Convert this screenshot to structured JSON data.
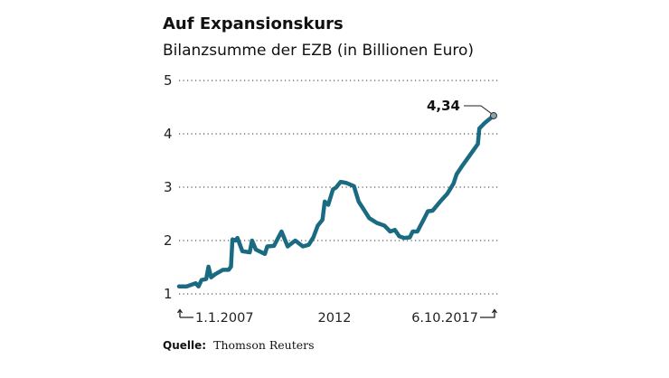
{
  "chart_data": {
    "type": "line",
    "title": "Auf Expansionskurs",
    "subtitle": "Bilanzsumme der EZB (in Billionen Euro)",
    "xlabel": "",
    "ylabel": "",
    "ylim": [
      1,
      5
    ],
    "yticks": [
      "1",
      "2",
      "3",
      "4",
      "5"
    ],
    "xlim": [
      2007.0,
      2017.77
    ],
    "xtick_labels": [
      {
        "label": "1.1.2007",
        "x": 2007.0
      },
      {
        "label": "2012",
        "x": 2012.0
      },
      {
        "label": "6.10.2017",
        "x": 2017.77
      }
    ],
    "grid": "horizontal-dotted",
    "line_color": "#1a6b82",
    "annotation": {
      "label": "4,34",
      "x": 2017.77,
      "y": 4.34
    },
    "x": [
      2007.0,
      2007.26,
      2007.57,
      2007.67,
      2007.77,
      2007.93,
      2008.01,
      2008.1,
      2008.24,
      2008.5,
      2008.7,
      2008.78,
      2008.83,
      2008.93,
      2009.0,
      2009.17,
      2009.42,
      2009.5,
      2009.63,
      2009.94,
      2010.02,
      2010.25,
      2010.51,
      2010.72,
      2010.98,
      2011.24,
      2011.44,
      2011.6,
      2011.75,
      2011.91,
      2011.99,
      2012.11,
      2012.27,
      2012.37,
      2012.53,
      2012.73,
      2012.99,
      2013.15,
      2013.35,
      2013.51,
      2013.77,
      2014.03,
      2014.23,
      2014.39,
      2014.54,
      2014.7,
      2014.9,
      2015.0,
      2015.16,
      2015.37,
      2015.52,
      2015.68,
      2015.94,
      2016.19,
      2016.4,
      2016.5,
      2016.71,
      2016.97,
      2017.23,
      2017.28,
      2017.48,
      2017.77
    ],
    "y": [
      1.14,
      1.14,
      1.2,
      1.14,
      1.26,
      1.28,
      1.51,
      1.31,
      1.37,
      1.45,
      1.45,
      1.51,
      2.02,
      2.0,
      2.05,
      1.8,
      1.78,
      2.0,
      1.83,
      1.75,
      1.89,
      1.9,
      2.17,
      1.89,
      2.0,
      1.89,
      1.92,
      2.06,
      2.28,
      2.39,
      2.73,
      2.67,
      2.96,
      2.99,
      3.1,
      3.08,
      3.02,
      2.73,
      2.56,
      2.42,
      2.33,
      2.28,
      2.17,
      2.2,
      2.08,
      2.05,
      2.06,
      2.17,
      2.17,
      2.39,
      2.55,
      2.56,
      2.73,
      2.88,
      3.07,
      3.24,
      3.41,
      3.61,
      3.81,
      4.1,
      4.21,
      4.34
    ]
  },
  "source": {
    "label": "Quelle:",
    "value": "Thomson Reuters"
  }
}
